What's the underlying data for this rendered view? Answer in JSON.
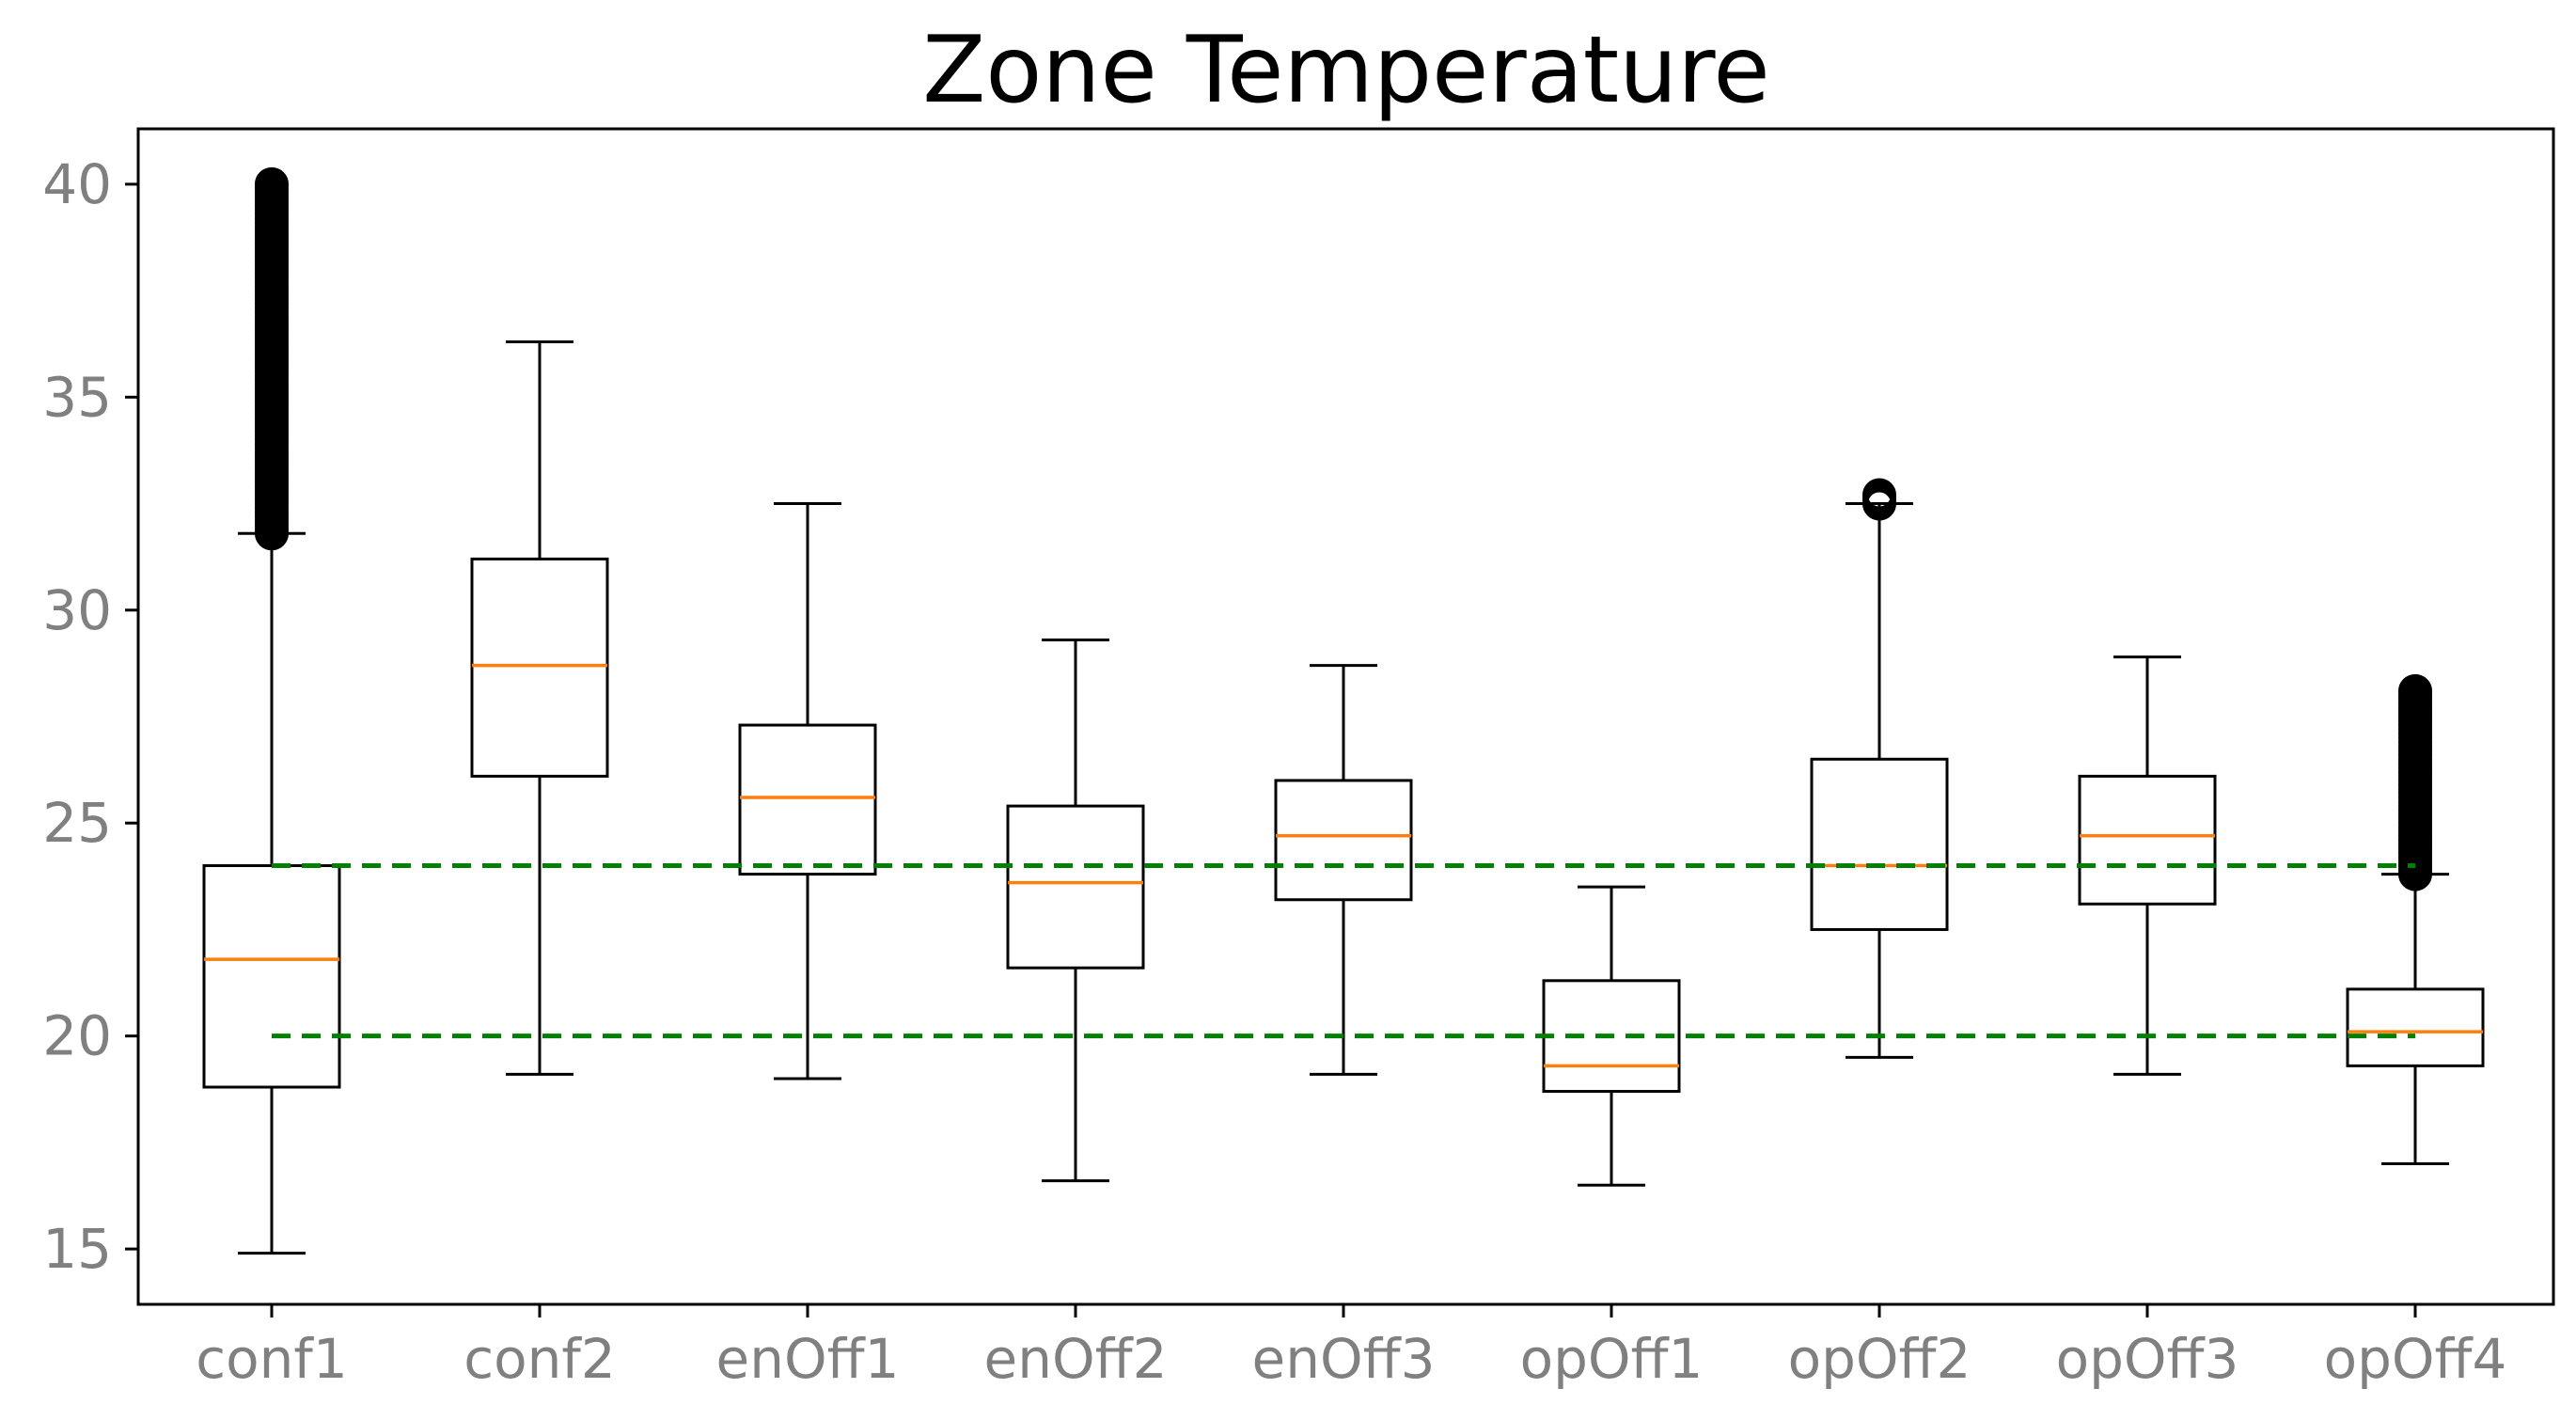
{
  "chart_data": {
    "type": "box",
    "title": "Zone Temperature",
    "xlabel": "",
    "ylabel": "",
    "ylim": [
      13.7,
      41.3
    ],
    "yticks": [
      15,
      20,
      25,
      30,
      35,
      40
    ],
    "grid": false,
    "legend": null,
    "categories": [
      "conf1",
      "conf2",
      "enOff1",
      "enOff2",
      "enOff3",
      "opOff1",
      "opOff2",
      "opOff3",
      "opOff4"
    ],
    "boxes": [
      {
        "category": "conf1",
        "whisker_low": 14.9,
        "q1": 18.8,
        "median": 21.8,
        "q3": 24.0,
        "whisker_high": 31.8,
        "outliers_range": [
          31.8,
          40.0
        ]
      },
      {
        "category": "conf2",
        "whisker_low": 19.1,
        "q1": 26.1,
        "median": 28.7,
        "q3": 31.2,
        "whisker_high": 36.3,
        "outliers_range": null
      },
      {
        "category": "enOff1",
        "whisker_low": 19.0,
        "q1": 23.8,
        "median": 25.6,
        "q3": 27.3,
        "whisker_high": 32.5,
        "outliers_range": null
      },
      {
        "category": "enOff2",
        "whisker_low": 16.6,
        "q1": 21.6,
        "median": 23.6,
        "q3": 25.4,
        "whisker_high": 29.3,
        "outliers_range": null
      },
      {
        "category": "enOff3",
        "whisker_low": 19.1,
        "q1": 23.2,
        "median": 24.7,
        "q3": 26.0,
        "whisker_high": 28.7,
        "outliers_range": null
      },
      {
        "category": "opOff1",
        "whisker_low": 16.5,
        "q1": 18.7,
        "median": 19.3,
        "q3": 21.3,
        "whisker_high": 23.5,
        "outliers_range": null
      },
      {
        "category": "opOff2",
        "whisker_low": 19.5,
        "q1": 22.5,
        "median": 24.0,
        "q3": 26.5,
        "whisker_high": 32.5,
        "outliers_range": [
          32.5,
          32.7
        ]
      },
      {
        "category": "opOff3",
        "whisker_low": 19.1,
        "q1": 23.1,
        "median": 24.7,
        "q3": 26.1,
        "whisker_high": 28.9,
        "outliers_range": null
      },
      {
        "category": "opOff4",
        "whisker_low": 17.0,
        "q1": 19.3,
        "median": 20.1,
        "q3": 21.1,
        "whisker_high": 23.8,
        "outliers_range": [
          23.8,
          28.1
        ]
      }
    ],
    "reference_lines": [
      {
        "y": 24.0,
        "from_category": "conf1",
        "to_category": "opOff4",
        "style": "dashed",
        "color": "#008000"
      },
      {
        "y": 20.0,
        "from_category": "conf1",
        "to_category": "opOff4",
        "style": "dashed",
        "color": "#008000"
      }
    ],
    "colors": {
      "box": "#000000",
      "median": "#ff7f0e",
      "reference": "#008000",
      "tick_label": "#808080",
      "outlier": "#000000"
    }
  }
}
